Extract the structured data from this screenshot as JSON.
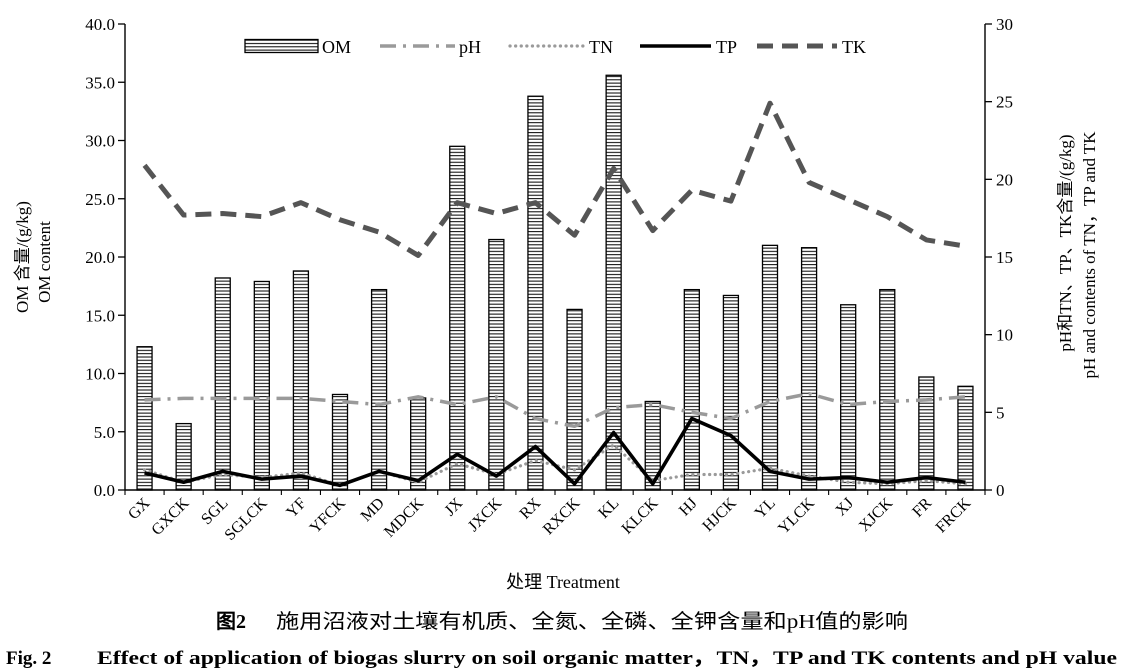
{
  "chart_data": {
    "type": "bar",
    "categories": [
      "GX",
      "GXCK",
      "SGL",
      "SGLCK",
      "YF",
      "YFCK",
      "MD",
      "MDCK",
      "JX",
      "JXCK",
      "RX",
      "RXCK",
      "KL",
      "KLCK",
      "HJ",
      "HJCK",
      "YL",
      "YLCK",
      "XJ",
      "XJCK",
      "FR",
      "FRCK"
    ],
    "series": [
      {
        "name": "OM",
        "type": "bar",
        "y_axis": 1,
        "fill": "horizontal-hatch",
        "color": "#000000",
        "values": [
          12.3,
          5.7,
          18.2,
          17.9,
          18.8,
          8.2,
          17.2,
          7.9,
          29.5,
          21.5,
          33.8,
          15.5,
          35.6,
          7.6,
          17.2,
          16.7,
          21.0,
          20.8,
          15.9,
          17.2,
          9.7,
          8.9
        ]
      },
      {
        "name": "pH",
        "type": "line",
        "y_axis": 2,
        "line_style": "dash-dot",
        "color": "#9a9a9a",
        "values": [
          5.8,
          5.9,
          5.9,
          5.9,
          5.9,
          5.7,
          5.5,
          6.0,
          5.5,
          6.0,
          4.6,
          4.1,
          5.3,
          5.5,
          5.0,
          4.6,
          5.7,
          6.2,
          5.5,
          5.7,
          5.8,
          6.0
        ]
      },
      {
        "name": "TN",
        "type": "line",
        "y_axis": 2,
        "line_style": "dotted",
        "color": "#9a9a9a",
        "values": [
          1.3,
          0.5,
          1.0,
          0.8,
          1.1,
          0.3,
          1.2,
          0.5,
          1.7,
          1.0,
          1.9,
          1.3,
          2.9,
          0.6,
          1.0,
          1.0,
          1.4,
          0.9,
          0.5,
          0.4,
          0.6,
          0.4
        ]
      },
      {
        "name": "TP",
        "type": "line",
        "y_axis": 2,
        "line_style": "solid",
        "color": "#000000",
        "values": [
          1.1,
          0.5,
          1.2,
          0.7,
          0.9,
          0.3,
          1.2,
          0.6,
          2.3,
          0.9,
          2.8,
          0.4,
          3.7,
          0.4,
          4.6,
          3.5,
          1.2,
          0.7,
          0.8,
          0.5,
          0.8,
          0.5
        ]
      },
      {
        "name": "TK",
        "type": "line",
        "y_axis": 2,
        "line_style": "dashed",
        "color": "#555555",
        "values": [
          20.9,
          17.7,
          17.8,
          17.6,
          18.5,
          17.4,
          16.6,
          15.1,
          18.5,
          17.8,
          18.5,
          16.4,
          20.7,
          16.7,
          19.3,
          18.6,
          24.9,
          19.8,
          18.7,
          17.6,
          16.1,
          15.7
        ]
      }
    ],
    "xlabel": "处理 Treatment",
    "ylabel": [
      "OM 含量/(g/kg)",
      "OM content"
    ],
    "y2label": [
      "pH和TN、TP、TK含量/(g/kg)",
      "pH and contents of TN，TP and TK"
    ],
    "ylim": [
      0,
      40
    ],
    "yticks": [
      "0.0",
      "5.0",
      "10.0",
      "15.0",
      "20.0",
      "25.0",
      "30.0",
      "35.0",
      "40.0"
    ],
    "y2lim": [
      0,
      30
    ],
    "y2ticks": [
      "0",
      "5",
      "10",
      "15",
      "20",
      "25",
      "30"
    ],
    "legend": "top",
    "grid": false
  },
  "caption": {
    "zh_label": "图2",
    "zh_text": "施用沼液对土壤有机质、全氮、全磷、全钾含量和pH值的影响",
    "en_label": "Fig. 2",
    "en_text": "Effect of application of biogas slurry on soil organic matter，TN，TP and TK contents and pH value"
  }
}
